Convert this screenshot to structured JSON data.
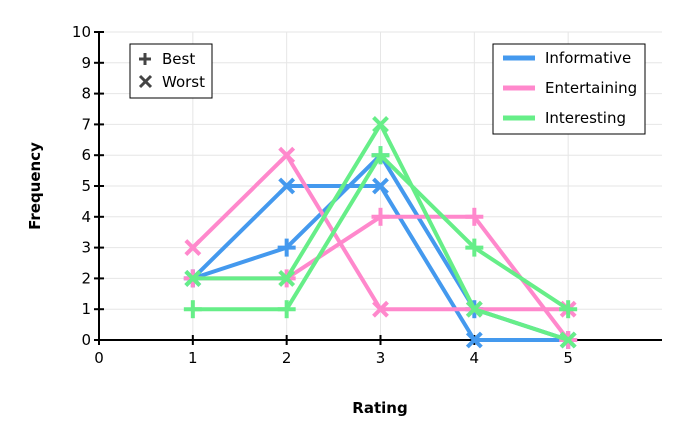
{
  "chart_data": {
    "type": "line",
    "xlabel": "Rating",
    "ylabel": "Frequency",
    "xlim": [
      0,
      6
    ],
    "ylim": [
      0,
      10
    ],
    "x_ticks": [
      0,
      1,
      2,
      3,
      4,
      5
    ],
    "y_ticks": [
      0,
      1,
      2,
      3,
      4,
      5,
      6,
      7,
      8,
      9,
      10
    ],
    "grid": true,
    "x": [
      1,
      2,
      3,
      4,
      5
    ],
    "series": [
      {
        "name": "Informative",
        "kind": "Best",
        "color": "#4499ee",
        "values": [
          2,
          3,
          6,
          1,
          0
        ]
      },
      {
        "name": "Informative",
        "kind": "Worst",
        "color": "#4499ee",
        "values": [
          2,
          5,
          5,
          0,
          0
        ]
      },
      {
        "name": "Entertaining",
        "kind": "Best",
        "color": "#ff88cc",
        "values": [
          2,
          2,
          4,
          4,
          0
        ]
      },
      {
        "name": "Entertaining",
        "kind": "Worst",
        "color": "#ff88cc",
        "values": [
          3,
          6,
          1,
          1,
          1
        ]
      },
      {
        "name": "Interesting",
        "kind": "Best",
        "color": "#66ee88",
        "values": [
          1,
          1,
          6,
          3,
          1
        ]
      },
      {
        "name": "Interesting",
        "kind": "Worst",
        "color": "#66ee88",
        "values": [
          2,
          2,
          7,
          1,
          0
        ]
      }
    ],
    "marker_legend": {
      "placement": "top-left",
      "items": [
        {
          "label": "Best",
          "marker": "plus"
        },
        {
          "label": "Worst",
          "marker": "cross"
        }
      ]
    },
    "color_legend": {
      "placement": "top-right",
      "items": [
        {
          "label": "Informative",
          "color": "#4499ee"
        },
        {
          "label": "Entertaining",
          "color": "#ff88cc"
        },
        {
          "label": "Interesting",
          "color": "#66ee88"
        }
      ]
    }
  }
}
